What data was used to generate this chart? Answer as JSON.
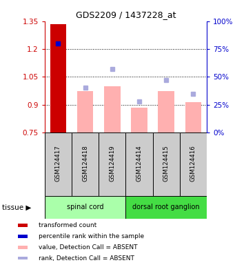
{
  "title": "GDS2209 / 1437228_at",
  "samples": [
    "GSM124417",
    "GSM124418",
    "GSM124419",
    "GSM124414",
    "GSM124415",
    "GSM124416"
  ],
  "bar_baseline": 0.75,
  "red_bar": {
    "sample": "GSM124417",
    "value": 1.335,
    "color": "#cc0000"
  },
  "blue_dot": {
    "sample": "GSM124417",
    "rank_pct": 80,
    "color": "#0000cc"
  },
  "pink_bars": [
    {
      "sample": "GSM124418",
      "value": 0.975
    },
    {
      "sample": "GSM124419",
      "value": 1.0
    },
    {
      "sample": "GSM124414",
      "value": 0.885
    },
    {
      "sample": "GSM124415",
      "value": 0.975
    },
    {
      "sample": "GSM124416",
      "value": 0.915
    }
  ],
  "lavender_dots": [
    {
      "sample": "GSM124418",
      "rank_pct": 40
    },
    {
      "sample": "GSM124419",
      "rank_pct": 57
    },
    {
      "sample": "GSM124414",
      "rank_pct": 28
    },
    {
      "sample": "GSM124415",
      "rank_pct": 47
    },
    {
      "sample": "GSM124416",
      "rank_pct": 35
    }
  ],
  "pink_color": "#ffb0b0",
  "lavender_color": "#aaaadd",
  "ylim": [
    0.75,
    1.35
  ],
  "y_ticks": [
    0.75,
    0.9,
    1.05,
    1.2,
    1.35
  ],
  "right_ylim": [
    0,
    100
  ],
  "right_y_ticks": [
    0,
    25,
    50,
    75,
    100
  ],
  "right_y_labels": [
    "0%",
    "25%",
    "50%",
    "75%",
    "100%"
  ],
  "ylabel_color": "#cc0000",
  "right_ylabel_color": "#0000cc",
  "tissue_spinal_color": "#aaffaa",
  "tissue_ganglion_color": "#44dd44",
  "sample_box_color": "#cccccc",
  "legend_items": [
    {
      "label": "transformed count",
      "color": "#cc0000"
    },
    {
      "label": "percentile rank within the sample",
      "color": "#0000cc"
    },
    {
      "label": "value, Detection Call = ABSENT",
      "color": "#ffb0b0"
    },
    {
      "label": "rank, Detection Call = ABSENT",
      "color": "#aaaadd"
    }
  ]
}
